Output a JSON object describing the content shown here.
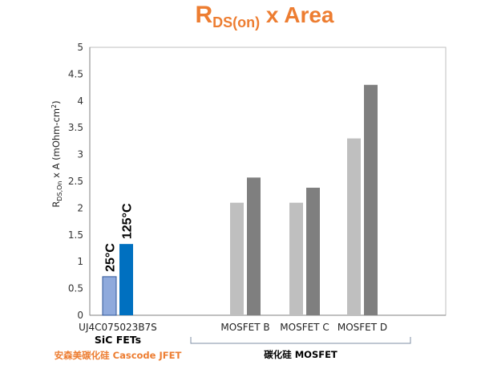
{
  "chart_data": {
    "type": "bar",
    "title": "R",
    "title_sub": "DS(on)",
    "title_rest": " x Area",
    "ylabel": {
      "main": "R",
      "sub": "DS,On",
      "rest": " x A (mOhm-cm",
      "sup": "2",
      "end": ")"
    },
    "ylim": [
      0,
      5
    ],
    "yticks": [
      "0",
      "0.5",
      "1",
      "1.5",
      "2",
      "2.5",
      "3",
      "3.5",
      "4",
      "4.5",
      "5"
    ],
    "grid": false,
    "categories": [
      "UJ4C075023B7S",
      "MOSFET B",
      "MOSFET C",
      "MOSFET D"
    ],
    "series": [
      {
        "name": "25°C",
        "values": [
          0.72,
          2.1,
          2.1,
          3.3
        ]
      },
      {
        "name": "125°C",
        "values": [
          1.33,
          2.57,
          2.38,
          4.3
        ]
      }
    ],
    "colors": {
      "sic_25": "#8faadc",
      "sic_125": "#0070c0",
      "mos_25": "#bfbfbf",
      "mos_125": "#7f7f7f",
      "title": "#ed7d31",
      "group_sic_label": "#ed7d31",
      "group_mos_label": "#000000"
    },
    "group_labels": {
      "sic_primary": "SiC FETs",
      "sic_secondary": "安森美碳化硅 Cascode JFET",
      "mosfet": "碳化硅 MOSFET"
    }
  }
}
